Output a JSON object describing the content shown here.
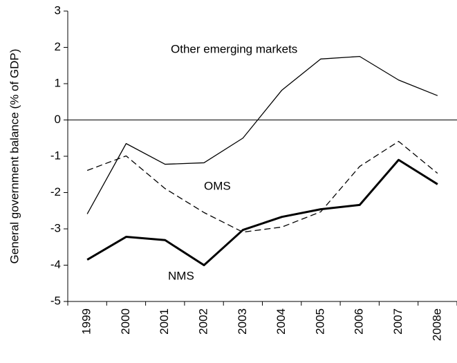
{
  "chart_data": {
    "type": "line",
    "y_label": "General government balance (% of GDP)",
    "categories": [
      "1999",
      "2000",
      "2001",
      "2002",
      "2003",
      "2004",
      "2005",
      "2006",
      "2007",
      "2008e"
    ],
    "series": [
      {
        "name": "Other emerging markets",
        "color": "#000000",
        "style": "solid",
        "values": [
          -2.59,
          -0.65,
          -1.22,
          -1.18,
          -0.5,
          0.82,
          1.68,
          1.75,
          1.1,
          0.67
        ]
      },
      {
        "name": "OMS",
        "color": "#000000",
        "style": "dashed",
        "values": [
          -1.39,
          -0.99,
          -1.89,
          -2.55,
          -3.09,
          -2.95,
          -2.53,
          -1.28,
          -0.59,
          -1.47
        ]
      },
      {
        "name": "NMS",
        "color": "#000000",
        "style": "bold",
        "values": [
          -3.85,
          -3.22,
          -3.31,
          -4.0,
          -3.03,
          -2.67,
          -2.46,
          -2.34,
          -1.1,
          -1.77
        ]
      }
    ],
    "ylim": [
      -5,
      3
    ],
    "yticks": [
      -5,
      -4,
      -3,
      -2,
      -1,
      0,
      1,
      2,
      3
    ],
    "grid": false
  }
}
